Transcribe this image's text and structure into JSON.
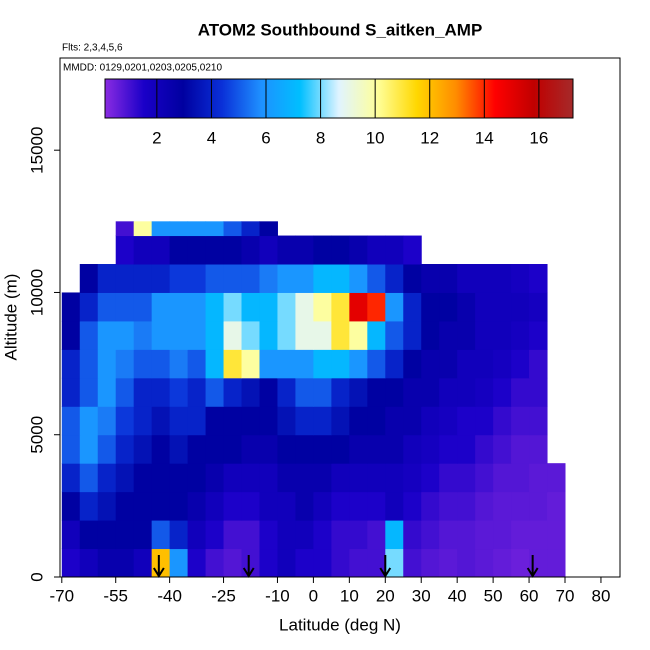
{
  "chart_data": {
    "type": "heatmap",
    "title": "ATOM2 Southbound S_aitken_AMP",
    "subtitle": "Flts: 2,3,4,5,6",
    "annotation": "MMDD: 0129,0201,0203,0205,0210",
    "x_label": "Latitude (deg N)",
    "y_label": "Altitude (m)",
    "xlim": [
      -70.5,
      85.3
    ],
    "ylim": [
      0,
      18240
    ],
    "xticks": [
      -70,
      -55,
      -40,
      -25,
      -10,
      0,
      10,
      20,
      30,
      40,
      50,
      60,
      70,
      80
    ],
    "yticks": [
      0,
      5000,
      10000,
      15000
    ],
    "x_bins": [
      -70,
      -65,
      -60,
      -55,
      -50,
      -45,
      -40,
      -35,
      -30,
      -25,
      -20,
      -15,
      -10,
      -5,
      0,
      5,
      10,
      15,
      20,
      25,
      30,
      35,
      40,
      45,
      50,
      55,
      60,
      65,
      70
    ],
    "y_bins": [
      0,
      1000,
      2000,
      3000,
      4000,
      5000,
      6000,
      7000,
      8000,
      9000,
      10000,
      11000,
      12000,
      12500
    ],
    "values": [
      [
        1.5,
        2,
        2.5,
        2.5,
        2,
        12,
        6,
        1.5,
        1,
        0.8,
        1,
        1.5,
        2,
        1.5,
        1.5,
        1.2,
        1,
        1,
        8,
        1,
        0.8,
        0.7,
        0.8,
        0.7,
        0.6,
        0.5,
        0.6,
        0.6
      ],
      [
        2,
        3,
        3,
        3,
        3,
        5,
        4,
        2,
        1.5,
        1,
        1,
        1.5,
        2,
        2,
        1.5,
        1.2,
        1.2,
        1,
        7,
        1.2,
        1,
        0.8,
        0.8,
        0.7,
        0.7,
        0.6,
        0.6,
        0.6
      ],
      [
        3,
        4,
        3.5,
        3,
        3,
        3,
        3,
        2.5,
        2,
        1.5,
        1.5,
        2,
        2,
        2.5,
        2,
        1.5,
        1.5,
        1.5,
        2,
        1.5,
        1.2,
        1,
        1,
        0.8,
        0.7,
        0.7,
        0.7,
        0.6
      ],
      [
        4,
        5,
        4,
        3.5,
        3,
        3,
        3,
        3,
        2.5,
        2,
        2,
        2,
        2.5,
        2.5,
        2.5,
        2,
        2,
        2,
        2,
        1.8,
        1.5,
        1.2,
        1.2,
        1,
        0.8,
        0.8,
        0.7,
        0.7
      ],
      [
        5,
        6,
        5,
        4,
        3.5,
        3,
        3.5,
        3,
        3,
        3,
        2.5,
        2.5,
        3,
        3,
        3,
        3,
        2.5,
        2.5,
        2.5,
        2,
        1.8,
        1.5,
        1.5,
        1.2,
        1,
        0.8,
        0.8,
        null
      ],
      [
        5,
        6,
        5.5,
        4.5,
        4,
        3.5,
        4,
        4,
        3,
        3,
        3,
        3,
        3.5,
        4,
        4,
        3.5,
        3,
        3,
        2.5,
        2.5,
        2,
        1.8,
        1.5,
        1.5,
        1.2,
        1,
        1,
        null
      ],
      [
        4,
        5,
        6,
        5,
        4,
        4,
        4.5,
        4,
        5,
        4,
        3.5,
        3,
        4,
        5,
        5,
        4,
        3.5,
        3,
        3,
        2.5,
        2.5,
        2,
        2,
        1.8,
        1.5,
        1.2,
        1.2,
        null
      ],
      [
        4,
        5,
        6,
        5.5,
        5,
        5,
        5.5,
        5,
        7,
        11,
        10,
        6,
        6,
        6,
        7,
        7,
        6,
        5,
        4,
        3,
        2.5,
        2.5,
        2,
        2,
        1.8,
        1.5,
        1.2,
        null
      ],
      [
        3,
        5,
        6,
        6,
        5.5,
        6,
        6,
        6,
        7,
        9,
        8,
        7,
        8,
        9,
        9,
        11,
        10,
        7,
        5,
        4,
        3,
        2.5,
        2.5,
        2,
        2,
        1.8,
        1.5,
        null
      ],
      [
        3,
        4,
        5,
        5,
        5,
        6,
        6,
        6,
        7,
        8,
        7,
        7,
        8,
        9,
        10,
        11,
        15,
        14,
        6,
        4,
        3,
        3,
        2.5,
        2,
        2,
        2,
        1.8,
        null
      ],
      [
        null,
        3,
        4,
        4,
        4,
        4,
        4.5,
        4.5,
        5,
        5,
        5,
        5.5,
        6,
        6,
        7,
        7,
        6,
        5,
        4,
        3,
        2.5,
        2.5,
        2,
        2,
        2,
        1.8,
        1.5,
        null
      ],
      [
        null,
        null,
        null,
        1.5,
        2,
        2,
        3,
        3,
        3,
        3,
        2.5,
        2,
        2.5,
        2.5,
        3,
        3,
        2.5,
        2,
        2,
        1.5,
        null,
        null,
        null,
        null,
        null,
        null,
        null,
        null
      ],
      [
        null,
        null,
        null,
        1,
        10,
        6,
        6,
        6,
        6,
        5,
        4,
        3,
        null,
        null,
        null,
        null,
        null,
        null,
        null,
        null,
        null,
        null,
        null,
        null,
        null,
        null,
        null,
        null
      ]
    ],
    "colormap": [
      "#8a2be2",
      "#1a00c8",
      "#0000a0",
      "#0a30d8",
      "#1e90ff",
      "#00bfff",
      "#e0f4ff",
      "#ffff99",
      "#ffd700",
      "#ff8c00",
      "#ff0000",
      "#c00000",
      "#a52a2a"
    ],
    "colorbar_lim": [
      0.1,
      17.25
    ],
    "colorbar_ticks": [
      2,
      4,
      6,
      8,
      10,
      12,
      14,
      16
    ],
    "arrow_lats": [
      -43,
      -18,
      20,
      61
    ]
  }
}
